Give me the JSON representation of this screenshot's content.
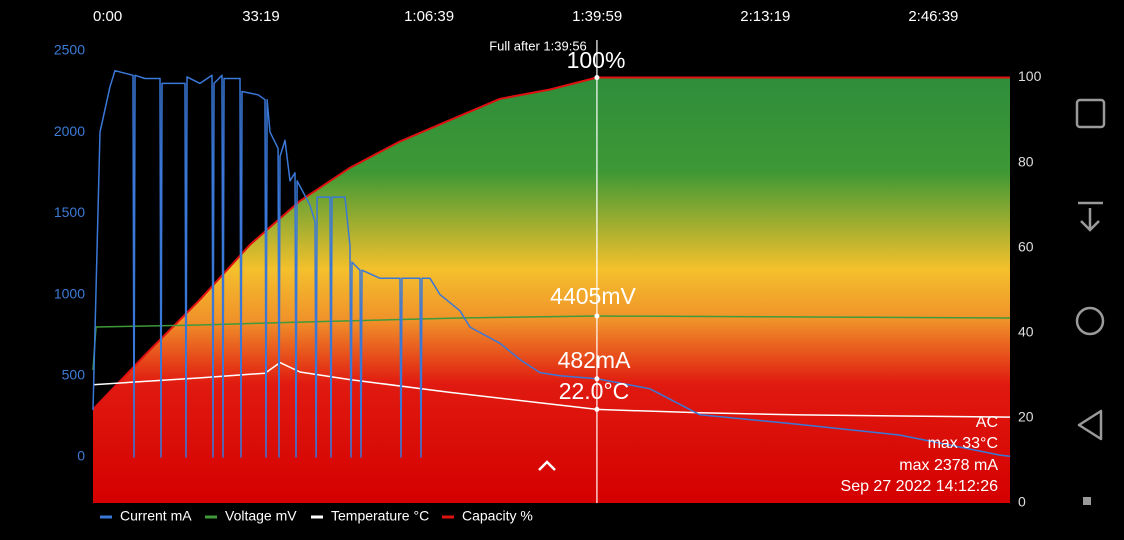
{
  "chart_data": {
    "type": "line",
    "xlim": [
      0,
      10911
    ],
    "xticks": [
      {
        "value": 0,
        "label": "0:00"
      },
      {
        "value": 1999,
        "label": "33:19"
      },
      {
        "value": 3999,
        "label": "1:06:39"
      },
      {
        "value": 5999,
        "label": "1:39:59"
      },
      {
        "value": 7999,
        "label": "2:13:19"
      },
      {
        "value": 9999,
        "label": "2:46:39"
      }
    ],
    "ylim": [
      -283,
      2598
    ],
    "yticks": [
      0,
      500,
      1000,
      1500,
      2000,
      2500
    ],
    "ytick_color": "#3d7bd6",
    "y2lim": [
      0,
      110
    ],
    "y2ticks": [
      0,
      20,
      40,
      60,
      80,
      100
    ],
    "y3lim": [
      2705,
      6960
    ],
    "series": [
      {
        "name": "Current mA",
        "color": "#3a78d8",
        "axis": "y",
        "x": [
          0,
          83,
          202,
          262,
          476,
          488,
          500,
          619,
          797,
          809,
          821,
          1095,
          1107,
          1119,
          1273,
          1416,
          1428,
          1440,
          1535,
          1547,
          1559,
          1749,
          1761,
          1773,
          1964,
          2047,
          2059,
          2071,
          2106,
          2202,
          2213,
          2225,
          2285,
          2344,
          2404,
          2416,
          2428,
          2582,
          2642,
          2654,
          2666,
          2820,
          2832,
          2844,
          2999,
          3058,
          3070,
          3082,
          3177,
          3189,
          3201,
          3415,
          3653,
          3665,
          3677,
          3891,
          3903,
          3915,
          4010,
          4129,
          4367,
          4486,
          4843,
          5081,
          5319,
          5557,
          5996,
          6628,
          7223,
          8413,
          9603,
          10793,
          10911
        ],
        "values": [
          290,
          2000,
          2280,
          2378,
          2350,
          0,
          2350,
          2330,
          2330,
          0,
          2300,
          2300,
          0,
          2340,
          2300,
          2350,
          0,
          2300,
          2350,
          0,
          2330,
          2330,
          0,
          2250,
          2230,
          2200,
          0,
          2200,
          2000,
          1900,
          0,
          1850,
          1950,
          1700,
          1750,
          0,
          1700,
          1550,
          1450,
          0,
          1600,
          1600,
          0,
          1600,
          1600,
          1300,
          0,
          1200,
          1150,
          0,
          1150,
          1100,
          1100,
          0,
          1100,
          1100,
          0,
          1100,
          1100,
          1000,
          900,
          800,
          700,
          600,
          520,
          500,
          482,
          420,
          260,
          200,
          135,
          12,
          5
        ]
      },
      {
        "name": "Voltage mV",
        "color": "#3f9a3a",
        "axis": "y3",
        "x": [
          0,
          36,
          1273,
          2463,
          4367,
          5996,
          10911
        ],
        "values": [
          3914,
          4305,
          4323,
          4350,
          4387,
          4405,
          4387
        ]
      },
      {
        "name": "Temperature °C",
        "color": "#ffffff",
        "axis": "y2",
        "x": [
          0,
          1273,
          2047,
          2225,
          2463,
          3058,
          4248,
          5996,
          7223,
          8413,
          10911
        ],
        "values": [
          27.8,
          29.4,
          30.5,
          33,
          30.8,
          29,
          26,
          22,
          21.2,
          20.7,
          20.2
        ]
      },
      {
        "name": "Capacity %",
        "color": "#e01010",
        "axis": "y2",
        "x": [
          0,
          678,
          1273,
          1868,
          2463,
          3058,
          3653,
          4248,
          4843,
          5438,
          5996,
          10911
        ],
        "values": [
          22,
          36,
          47.8,
          60.7,
          71,
          78.8,
          85,
          90,
          95,
          97.2,
          100,
          100
        ]
      }
    ],
    "annotations": [
      "Full after 1:39:56",
      "100%",
      "4405mV",
      "482mA",
      "22.0°C"
    ],
    "info": [
      "AC",
      "max 33°C",
      "max 2378 mA",
      "Sep 27 2022 14:12:26"
    ]
  }
}
